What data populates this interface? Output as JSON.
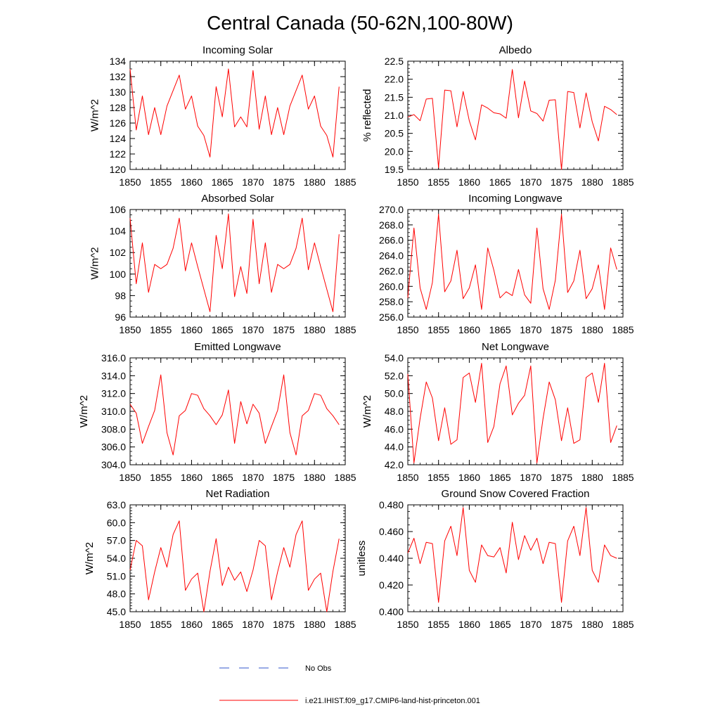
{
  "figure": {
    "title": "Central Canada (50-62N,100-80W)",
    "legend": [
      {
        "label": "No Obs",
        "color": "#3355cc",
        "dash": true
      },
      {
        "label": "i.e21.IHIST.f09_g17.CMIP6-land-hist-princeton.001",
        "color": "#ff0000",
        "dash": false
      }
    ]
  },
  "chart_data": [
    {
      "type": "line",
      "title": "Incoming Solar",
      "xlabel": "",
      "ylabel": "W/m^2",
      "xlim": [
        1850,
        1885
      ],
      "ylim": [
        120,
        134
      ],
      "xticks": [
        1850,
        1855,
        1860,
        1865,
        1870,
        1875,
        1880,
        1885
      ],
      "xtick_labels": [
        "1850",
        "1855",
        "1860",
        "1865",
        "1870",
        "1875",
        "1880",
        "1885"
      ],
      "yticks": [
        120,
        122,
        124,
        126,
        128,
        130,
        132,
        134
      ],
      "ytick_labels": [
        "120",
        "122",
        "124",
        "126",
        "128",
        "130",
        "132",
        "134"
      ],
      "yminor": 1,
      "xminor": 1,
      "x": [
        1850,
        1851,
        1852,
        1853,
        1854,
        1855,
        1856,
        1857,
        1858,
        1859,
        1860,
        1861,
        1862,
        1863,
        1864,
        1865,
        1866,
        1867,
        1868,
        1869,
        1870,
        1871,
        1872,
        1873,
        1874,
        1875,
        1876,
        1877,
        1878,
        1879,
        1880,
        1881,
        1882,
        1883,
        1884
      ],
      "series": [
        {
          "color": "#ff0000",
          "values": [
            133.0,
            125.1,
            129.5,
            124.5,
            128.0,
            124.5,
            128.2,
            130.2,
            132.2,
            127.8,
            129.5,
            125.6,
            124.4,
            121.6,
            130.7,
            126.8,
            133.0,
            125.5,
            126.8,
            125.5,
            132.8,
            125.2,
            129.5,
            124.5,
            128.0,
            124.5,
            128.2,
            130.2,
            132.2,
            127.8,
            129.5,
            125.6,
            124.4,
            121.6,
            130.7
          ]
        }
      ]
    },
    {
      "type": "line",
      "title": "Albedo",
      "xlabel": "",
      "ylabel": "% reflected",
      "xlim": [
        1850,
        1885
      ],
      "ylim": [
        19.5,
        22.5
      ],
      "xticks": [
        1850,
        1855,
        1860,
        1865,
        1870,
        1875,
        1880,
        1885
      ],
      "xtick_labels": [
        "1850",
        "1855",
        "1860",
        "1865",
        "1870",
        "1875",
        "1880",
        "1885"
      ],
      "yticks": [
        19.5,
        20.0,
        20.5,
        21.0,
        21.5,
        22.0,
        22.5
      ],
      "ytick_labels": [
        "19.5",
        "20.0",
        "20.5",
        "21.0",
        "21.5",
        "22.0",
        "22.5"
      ],
      "yminor": 0.1,
      "xminor": 1,
      "x": [
        1850,
        1851,
        1852,
        1853,
        1854,
        1855,
        1856,
        1857,
        1858,
        1859,
        1860,
        1861,
        1862,
        1863,
        1864,
        1865,
        1866,
        1867,
        1868,
        1869,
        1870,
        1871,
        1872,
        1873,
        1874,
        1875,
        1876,
        1877,
        1878,
        1879,
        1880,
        1881,
        1882,
        1883,
        1884
      ],
      "series": [
        {
          "color": "#ff0000",
          "values": [
            20.95,
            21.02,
            20.85,
            21.45,
            21.47,
            19.55,
            21.7,
            21.68,
            20.68,
            21.66,
            20.85,
            20.32,
            21.29,
            21.2,
            21.07,
            21.04,
            20.92,
            22.27,
            20.93,
            21.95,
            21.12,
            21.05,
            20.84,
            21.42,
            21.43,
            19.5,
            21.66,
            21.63,
            20.65,
            21.62,
            20.82,
            20.29,
            21.25,
            21.16,
            21.02
          ]
        }
      ]
    },
    {
      "type": "line",
      "title": "Absorbed Solar",
      "xlabel": "",
      "ylabel": "W/m^2",
      "xlim": [
        1850,
        1885
      ],
      "ylim": [
        96,
        106
      ],
      "xticks": [
        1850,
        1855,
        1860,
        1865,
        1870,
        1875,
        1880,
        1885
      ],
      "xtick_labels": [
        "1850",
        "1855",
        "1860",
        "1865",
        "1870",
        "1875",
        "1880",
        "1885"
      ],
      "yticks": [
        96,
        98,
        100,
        102,
        104,
        106
      ],
      "ytick_labels": [
        "96",
        "98",
        "100",
        "102",
        "104",
        "106"
      ],
      "yminor": 0.5,
      "xminor": 1,
      "x": [
        1850,
        1851,
        1852,
        1853,
        1854,
        1855,
        1856,
        1857,
        1858,
        1859,
        1860,
        1861,
        1862,
        1863,
        1864,
        1865,
        1866,
        1867,
        1868,
        1869,
        1870,
        1871,
        1872,
        1873,
        1874,
        1875,
        1876,
        1877,
        1878,
        1879,
        1880,
        1881,
        1882,
        1883,
        1884
      ],
      "series": [
        {
          "color": "#ff0000",
          "values": [
            105.2,
            99.1,
            102.9,
            98.3,
            100.9,
            100.5,
            100.9,
            102.4,
            105.2,
            100.3,
            102.9,
            100.7,
            98.6,
            96.5,
            103.6,
            100.5,
            105.6,
            97.9,
            100.7,
            98.2,
            105.1,
            99.1,
            102.9,
            98.3,
            100.9,
            100.5,
            100.9,
            102.4,
            105.2,
            100.4,
            102.9,
            100.7,
            98.6,
            96.5,
            103.7
          ]
        }
      ]
    },
    {
      "type": "line",
      "title": "Incoming Longwave",
      "xlabel": "",
      "ylabel": "",
      "xlim": [
        1850,
        1885
      ],
      "ylim": [
        256,
        270
      ],
      "xticks": [
        1850,
        1855,
        1860,
        1865,
        1870,
        1875,
        1880,
        1885
      ],
      "xtick_labels": [
        "1850",
        "1855",
        "1860",
        "1865",
        "1870",
        "1875",
        "1880",
        "1885"
      ],
      "yticks": [
        256,
        258,
        260,
        262,
        264,
        266,
        268,
        270
      ],
      "ytick_labels": [
        "256.0",
        "258.0",
        "260.0",
        "262.0",
        "264.0",
        "266.0",
        "268.0",
        "270.0"
      ],
      "yminor": 0.5,
      "xminor": 1,
      "x": [
        1850,
        1851,
        1852,
        1853,
        1854,
        1855,
        1856,
        1857,
        1858,
        1859,
        1860,
        1861,
        1862,
        1863,
        1864,
        1865,
        1866,
        1867,
        1868,
        1869,
        1870,
        1871,
        1872,
        1873,
        1874,
        1875,
        1876,
        1877,
        1878,
        1879,
        1880,
        1881,
        1882,
        1883,
        1884
      ],
      "series": [
        {
          "color": "#ff0000",
          "values": [
            258.5,
            267.6,
            259.8,
            257.0,
            260.5,
            269.4,
            259.3,
            260.7,
            264.7,
            258.4,
            259.8,
            262.8,
            257.0,
            265.0,
            262.1,
            258.5,
            259.3,
            258.8,
            262.2,
            258.9,
            257.8,
            267.6,
            259.7,
            257.0,
            260.8,
            269.4,
            259.2,
            260.7,
            264.7,
            258.4,
            259.7,
            262.8,
            257.0,
            265.0,
            262.2
          ]
        }
      ]
    },
    {
      "type": "line",
      "title": "Emitted Longwave",
      "xlabel": "",
      "ylabel": "W/m^2",
      "xlim": [
        1850,
        1885
      ],
      "ylim": [
        304,
        316
      ],
      "xticks": [
        1850,
        1855,
        1860,
        1865,
        1870,
        1875,
        1880,
        1885
      ],
      "xtick_labels": [
        "1850",
        "1855",
        "1860",
        "1865",
        "1870",
        "1875",
        "1880",
        "1885"
      ],
      "yticks": [
        304,
        306,
        308,
        310,
        312,
        314,
        316
      ],
      "ytick_labels": [
        "304.0",
        "306.0",
        "308.0",
        "310.0",
        "312.0",
        "314.0",
        "316.0"
      ],
      "yminor": 0.5,
      "xminor": 1,
      "x": [
        1850,
        1851,
        1852,
        1853,
        1854,
        1855,
        1856,
        1857,
        1858,
        1859,
        1860,
        1861,
        1862,
        1863,
        1864,
        1865,
        1866,
        1867,
        1868,
        1869,
        1870,
        1871,
        1872,
        1873,
        1874,
        1875,
        1876,
        1877,
        1878,
        1879,
        1880,
        1881,
        1882,
        1883,
        1884
      ],
      "series": [
        {
          "color": "#ff0000",
          "values": [
            310.8,
            309.8,
            306.4,
            308.3,
            310.1,
            314.1,
            307.6,
            305.1,
            309.5,
            310.1,
            312.0,
            311.8,
            310.3,
            309.5,
            308.5,
            309.6,
            312.4,
            306.4,
            311.1,
            308.6,
            310.8,
            309.8,
            306.4,
            308.3,
            310.1,
            314.1,
            307.6,
            305.1,
            309.5,
            310.1,
            312.0,
            311.8,
            310.3,
            309.5,
            308.5
          ]
        }
      ]
    },
    {
      "type": "line",
      "title": "Net Longwave",
      "xlabel": "",
      "ylabel": "W/m^2",
      "xlim": [
        1850,
        1885
      ],
      "ylim": [
        42,
        54
      ],
      "xticks": [
        1850,
        1855,
        1860,
        1865,
        1870,
        1875,
        1880,
        1885
      ],
      "xtick_labels": [
        "1850",
        "1855",
        "1860",
        "1865",
        "1870",
        "1875",
        "1880",
        "1885"
      ],
      "yticks": [
        42,
        44,
        46,
        48,
        50,
        52,
        54
      ],
      "ytick_labels": [
        "42.0",
        "44.0",
        "46.0",
        "48.0",
        "50.0",
        "52.0",
        "54.0"
      ],
      "yminor": 0.5,
      "xminor": 1,
      "x": [
        1850,
        1851,
        1852,
        1853,
        1854,
        1855,
        1856,
        1857,
        1858,
        1859,
        1860,
        1861,
        1862,
        1863,
        1864,
        1865,
        1866,
        1867,
        1868,
        1869,
        1870,
        1871,
        1872,
        1873,
        1874,
        1875,
        1876,
        1877,
        1878,
        1879,
        1880,
        1881,
        1882,
        1883,
        1884
      ],
      "series": [
        {
          "color": "#ff0000",
          "values": [
            52.2,
            42.2,
            47.2,
            51.3,
            49.5,
            44.7,
            48.4,
            44.3,
            44.8,
            51.8,
            52.3,
            49.0,
            53.4,
            44.5,
            46.3,
            51.1,
            53.1,
            47.6,
            48.9,
            49.8,
            53.1,
            42.2,
            47.2,
            51.3,
            49.3,
            44.7,
            48.4,
            44.4,
            44.8,
            51.8,
            52.3,
            49.0,
            53.4,
            44.5,
            46.4
          ]
        }
      ]
    },
    {
      "type": "line",
      "title": "Net Radiation",
      "xlabel": "",
      "ylabel": "W/m^2",
      "xlim": [
        1850,
        1885
      ],
      "ylim": [
        45,
        63
      ],
      "xticks": [
        1850,
        1855,
        1860,
        1865,
        1870,
        1875,
        1880,
        1885
      ],
      "xtick_labels": [
        "1850",
        "1855",
        "1860",
        "1865",
        "1870",
        "1875",
        "1880",
        "1885"
      ],
      "yticks": [
        45,
        48,
        51,
        54,
        57,
        60,
        63
      ],
      "ytick_labels": [
        "45.0",
        "48.0",
        "51.0",
        "54.0",
        "57.0",
        "60.0",
        "63.0"
      ],
      "yminor": 0.5,
      "xminor": 1,
      "x": [
        1850,
        1851,
        1852,
        1853,
        1854,
        1855,
        1856,
        1857,
        1858,
        1859,
        1860,
        1861,
        1862,
        1863,
        1864,
        1865,
        1866,
        1867,
        1868,
        1869,
        1870,
        1871,
        1872,
        1873,
        1874,
        1875,
        1876,
        1877,
        1878,
        1879,
        1880,
        1881,
        1882,
        1883,
        1884
      ],
      "series": [
        {
          "color": "#ff0000",
          "values": [
            52.0,
            57.0,
            56.1,
            47.0,
            51.7,
            55.8,
            52.5,
            58.0,
            60.3,
            48.6,
            50.5,
            51.5,
            45.0,
            51.8,
            57.3,
            49.4,
            52.5,
            50.3,
            51.7,
            48.4,
            52.0,
            57.0,
            56.1,
            47.0,
            51.7,
            55.8,
            52.5,
            58.0,
            60.3,
            48.6,
            50.5,
            51.5,
            45.0,
            51.8,
            57.3
          ]
        }
      ]
    },
    {
      "type": "line",
      "title": "Ground Snow Covered Fraction",
      "xlabel": "",
      "ylabel": "unitless",
      "xlim": [
        1850,
        1885
      ],
      "ylim": [
        0.4,
        0.48
      ],
      "xticks": [
        1850,
        1855,
        1860,
        1865,
        1870,
        1875,
        1880,
        1885
      ],
      "xtick_labels": [
        "1850",
        "1855",
        "1860",
        "1865",
        "1870",
        "1875",
        "1880",
        "1885"
      ],
      "yticks": [
        0.4,
        0.42,
        0.44,
        0.46,
        0.48
      ],
      "ytick_labels": [
        "0.400",
        "0.420",
        "0.440",
        "0.460",
        "0.480"
      ],
      "yminor": 0.005,
      "xminor": 1,
      "x": [
        1850,
        1851,
        1852,
        1853,
        1854,
        1855,
        1856,
        1857,
        1858,
        1859,
        1860,
        1861,
        1862,
        1863,
        1864,
        1865,
        1866,
        1867,
        1868,
        1869,
        1870,
        1871,
        1872,
        1873,
        1874,
        1875,
        1876,
        1877,
        1878,
        1879,
        1880,
        1881,
        1882,
        1883,
        1884
      ],
      "series": [
        {
          "color": "#ff0000",
          "values": [
            0.444,
            0.455,
            0.436,
            0.452,
            0.451,
            0.407,
            0.453,
            0.464,
            0.442,
            0.478,
            0.431,
            0.422,
            0.45,
            0.442,
            0.441,
            0.448,
            0.429,
            0.467,
            0.439,
            0.457,
            0.446,
            0.455,
            0.436,
            0.452,
            0.451,
            0.407,
            0.453,
            0.464,
            0.442,
            0.478,
            0.431,
            0.422,
            0.45,
            0.442,
            0.44
          ]
        }
      ]
    }
  ]
}
